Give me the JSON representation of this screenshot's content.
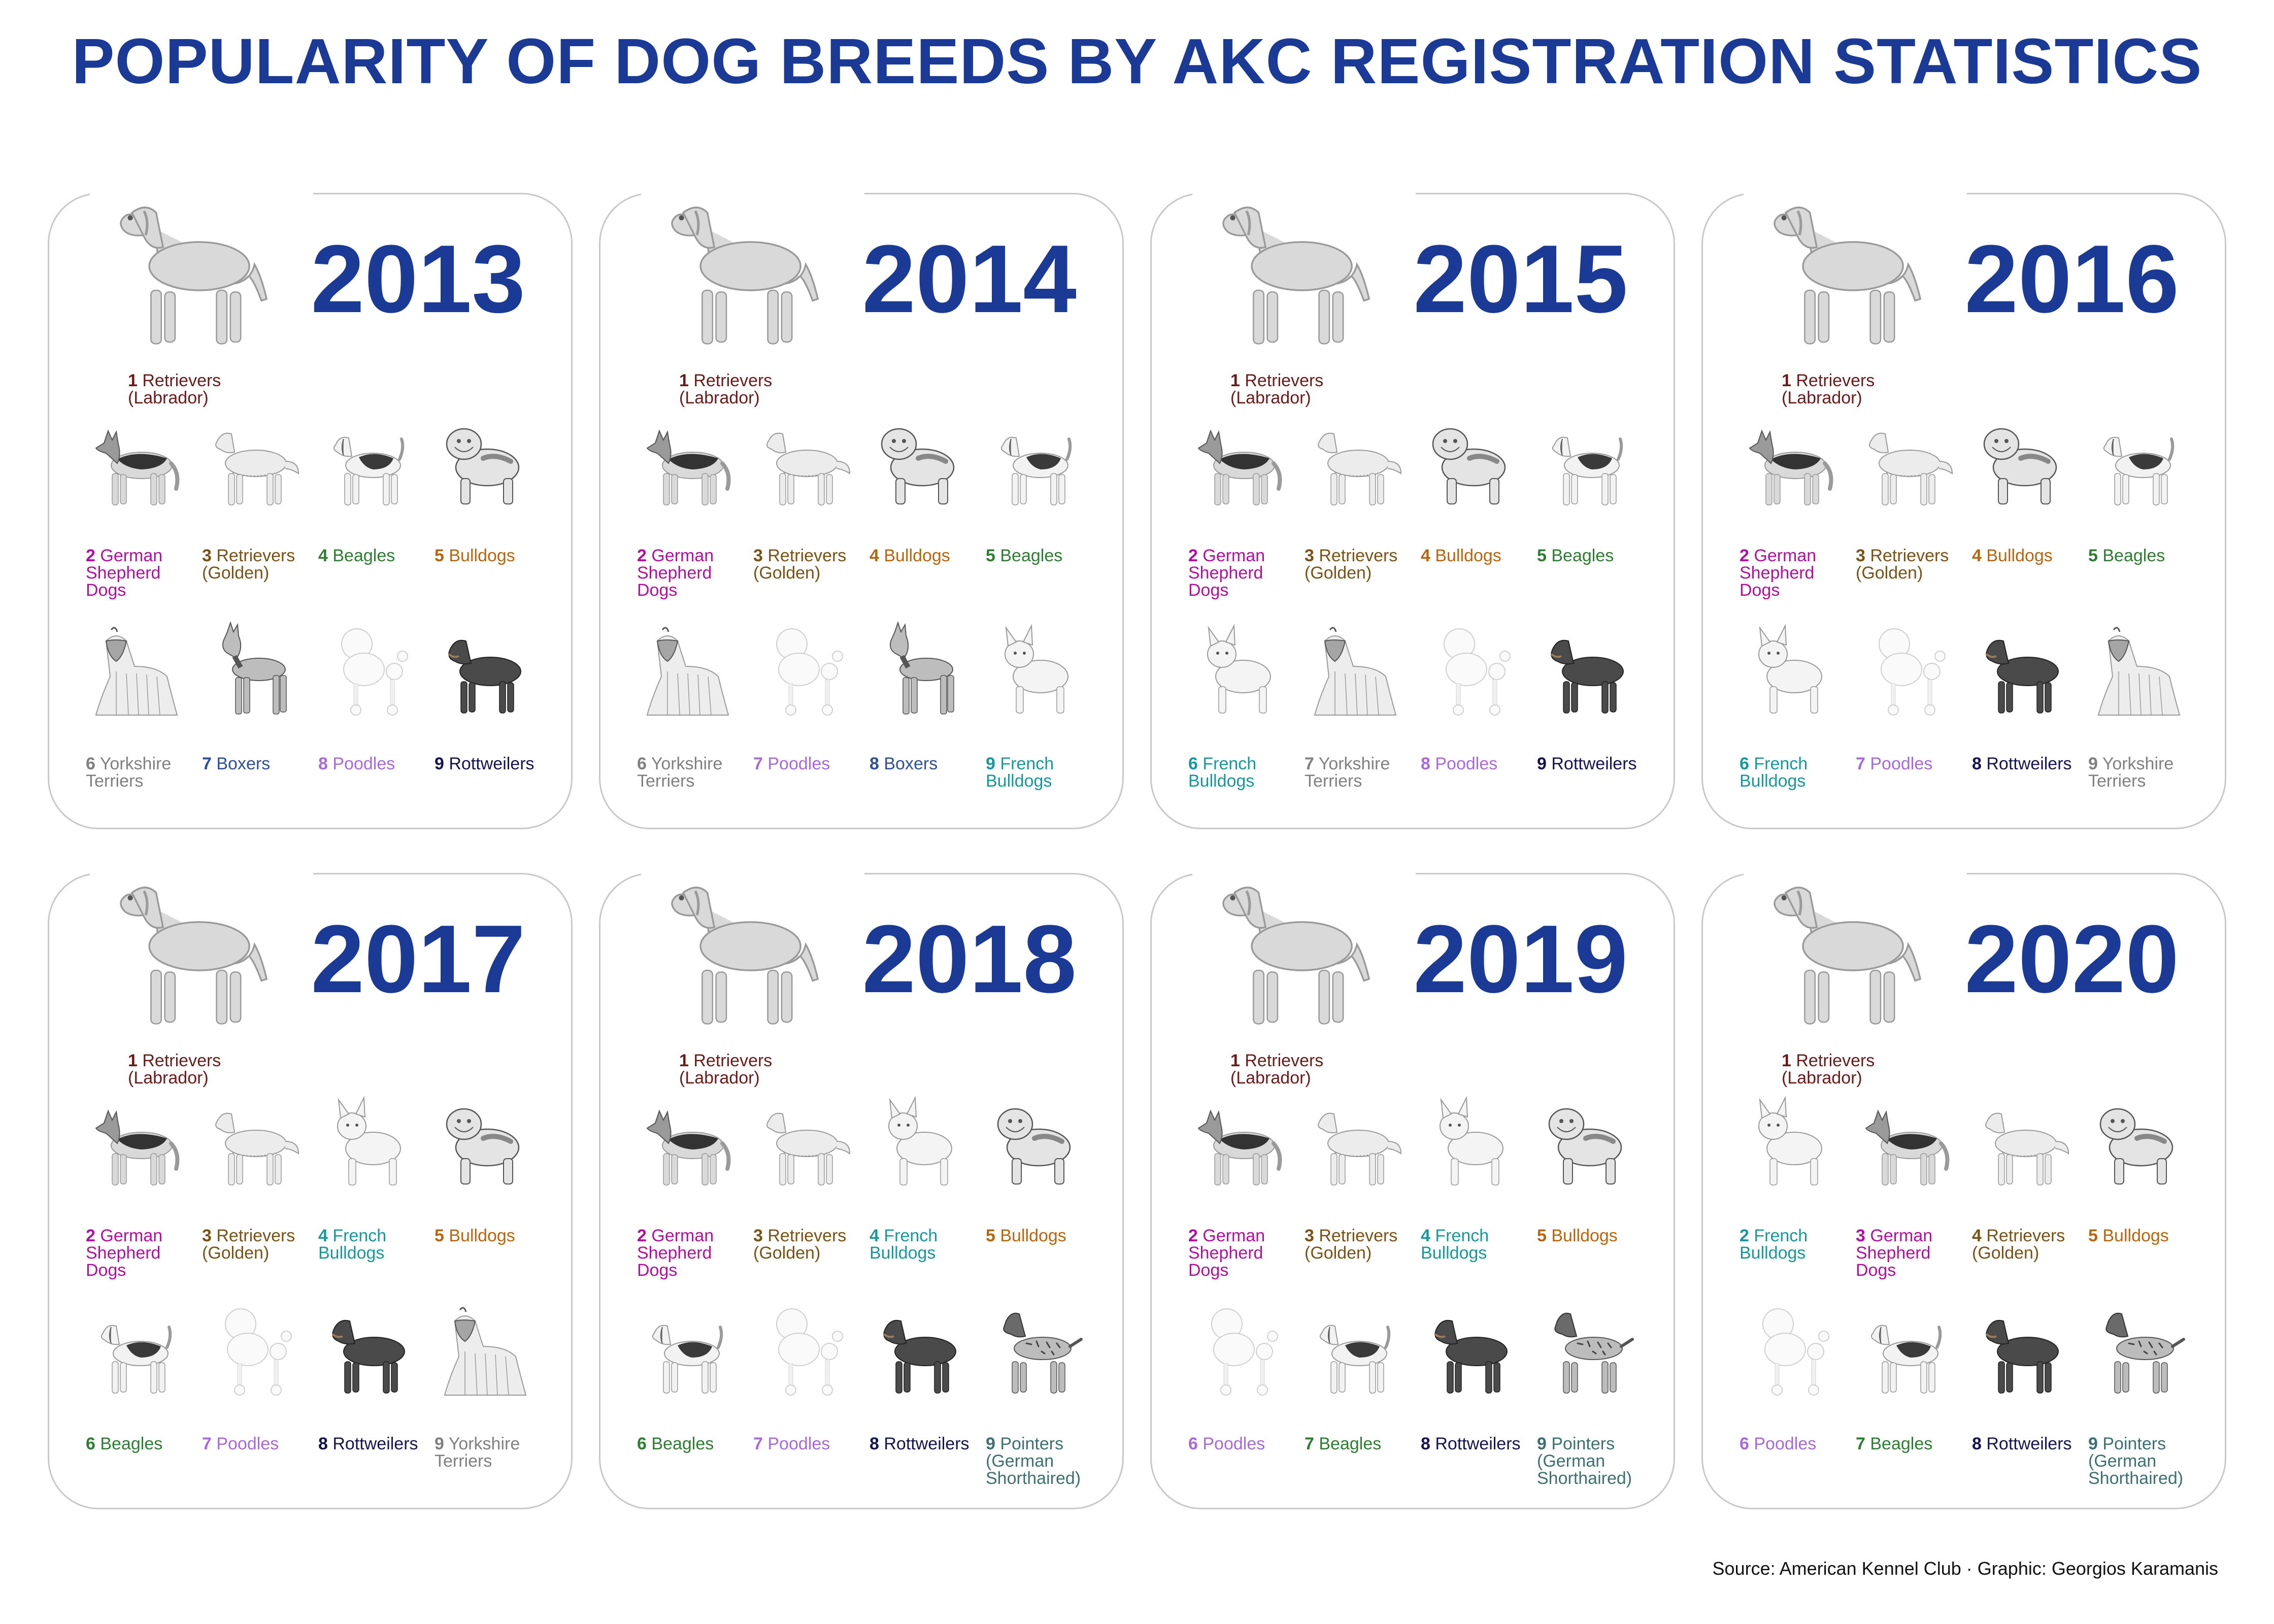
{
  "title": "POPULARITY OF DOG BREEDS BY AKC REGISTRATION STATISTICS",
  "source": "Source: American Kennel Club · Graphic: Georgios Karamanis",
  "chart_data": {
    "type": "table",
    "years": [
      {
        "year": "2013",
        "breeds": [
          {
            "rank": "1",
            "name": "Retrievers (Labrador)",
            "key": "labrador"
          },
          {
            "rank": "2",
            "name": "German Shepherd Dogs",
            "key": "gsd"
          },
          {
            "rank": "3",
            "name": "Retrievers (Golden)",
            "key": "golden"
          },
          {
            "rank": "4",
            "name": "Beagles",
            "key": "beagle"
          },
          {
            "rank": "5",
            "name": "Bulldogs",
            "key": "bulldog"
          },
          {
            "rank": "6",
            "name": "Yorkshire Terriers",
            "key": "yorkie"
          },
          {
            "rank": "7",
            "name": "Boxers",
            "key": "boxer"
          },
          {
            "rank": "8",
            "name": "Poodles",
            "key": "poodle"
          },
          {
            "rank": "9",
            "name": "Rottweilers",
            "key": "rottweiler"
          }
        ]
      },
      {
        "year": "2014",
        "breeds": [
          {
            "rank": "1",
            "name": "Retrievers (Labrador)",
            "key": "labrador"
          },
          {
            "rank": "2",
            "name": "German Shepherd Dogs",
            "key": "gsd"
          },
          {
            "rank": "3",
            "name": "Retrievers (Golden)",
            "key": "golden"
          },
          {
            "rank": "4",
            "name": "Bulldogs",
            "key": "bulldog"
          },
          {
            "rank": "5",
            "name": "Beagles",
            "key": "beagle"
          },
          {
            "rank": "6",
            "name": "Yorkshire Terriers",
            "key": "yorkie"
          },
          {
            "rank": "7",
            "name": "Poodles",
            "key": "poodle"
          },
          {
            "rank": "8",
            "name": "Boxers",
            "key": "boxer"
          },
          {
            "rank": "9",
            "name": "French Bulldogs",
            "key": "frenchie"
          }
        ]
      },
      {
        "year": "2015",
        "breeds": [
          {
            "rank": "1",
            "name": "Retrievers (Labrador)",
            "key": "labrador"
          },
          {
            "rank": "2",
            "name": "German Shepherd Dogs",
            "key": "gsd"
          },
          {
            "rank": "3",
            "name": "Retrievers (Golden)",
            "key": "golden"
          },
          {
            "rank": "4",
            "name": "Bulldogs",
            "key": "bulldog"
          },
          {
            "rank": "5",
            "name": "Beagles",
            "key": "beagle"
          },
          {
            "rank": "6",
            "name": "French Bulldogs",
            "key": "frenchie"
          },
          {
            "rank": "7",
            "name": "Yorkshire Terriers",
            "key": "yorkie"
          },
          {
            "rank": "8",
            "name": "Poodles",
            "key": "poodle"
          },
          {
            "rank": "9",
            "name": "Rottweilers",
            "key": "rottweiler"
          }
        ]
      },
      {
        "year": "2016",
        "breeds": [
          {
            "rank": "1",
            "name": "Retrievers (Labrador)",
            "key": "labrador"
          },
          {
            "rank": "2",
            "name": "German Shepherd Dogs",
            "key": "gsd"
          },
          {
            "rank": "3",
            "name": "Retrievers (Golden)",
            "key": "golden"
          },
          {
            "rank": "4",
            "name": "Bulldogs",
            "key": "bulldog"
          },
          {
            "rank": "5",
            "name": "Beagles",
            "key": "beagle"
          },
          {
            "rank": "6",
            "name": "French Bulldogs",
            "key": "frenchie"
          },
          {
            "rank": "7",
            "name": "Poodles",
            "key": "poodle"
          },
          {
            "rank": "8",
            "name": "Rottweilers",
            "key": "rottweiler"
          },
          {
            "rank": "9",
            "name": "Yorkshire Terriers",
            "key": "yorkie"
          }
        ]
      },
      {
        "year": "2017",
        "breeds": [
          {
            "rank": "1",
            "name": "Retrievers (Labrador)",
            "key": "labrador"
          },
          {
            "rank": "2",
            "name": "German Shepherd Dogs",
            "key": "gsd"
          },
          {
            "rank": "3",
            "name": "Retrievers (Golden)",
            "key": "golden"
          },
          {
            "rank": "4",
            "name": "French Bulldogs",
            "key": "frenchie"
          },
          {
            "rank": "5",
            "name": "Bulldogs",
            "key": "bulldog"
          },
          {
            "rank": "6",
            "name": "Beagles",
            "key": "beagle"
          },
          {
            "rank": "7",
            "name": "Poodles",
            "key": "poodle"
          },
          {
            "rank": "8",
            "name": "Rottweilers",
            "key": "rottweiler"
          },
          {
            "rank": "9",
            "name": "Yorkshire Terriers",
            "key": "yorkie"
          }
        ]
      },
      {
        "year": "2018",
        "breeds": [
          {
            "rank": "1",
            "name": "Retrievers (Labrador)",
            "key": "labrador"
          },
          {
            "rank": "2",
            "name": "German Shepherd Dogs",
            "key": "gsd"
          },
          {
            "rank": "3",
            "name": "Retrievers (Golden)",
            "key": "golden"
          },
          {
            "rank": "4",
            "name": "French Bulldogs",
            "key": "frenchie"
          },
          {
            "rank": "5",
            "name": "Bulldogs",
            "key": "bulldog"
          },
          {
            "rank": "6",
            "name": "Beagles",
            "key": "beagle"
          },
          {
            "rank": "7",
            "name": "Poodles",
            "key": "poodle"
          },
          {
            "rank": "8",
            "name": "Rottweilers",
            "key": "rottweiler"
          },
          {
            "rank": "9",
            "name": "Pointers (German Shorthaired)",
            "key": "pointer"
          }
        ]
      },
      {
        "year": "2019",
        "breeds": [
          {
            "rank": "1",
            "name": "Retrievers (Labrador)",
            "key": "labrador"
          },
          {
            "rank": "2",
            "name": "German Shepherd Dogs",
            "key": "gsd"
          },
          {
            "rank": "3",
            "name": "Retrievers (Golden)",
            "key": "golden"
          },
          {
            "rank": "4",
            "name": "French Bulldogs",
            "key": "frenchie"
          },
          {
            "rank": "5",
            "name": "Bulldogs",
            "key": "bulldog"
          },
          {
            "rank": "6",
            "name": "Poodles",
            "key": "poodle"
          },
          {
            "rank": "7",
            "name": "Beagles",
            "key": "beagle"
          },
          {
            "rank": "8",
            "name": "Rottweilers",
            "key": "rottweiler"
          },
          {
            "rank": "9",
            "name": "Pointers (German Shorthaired)",
            "key": "pointer"
          }
        ]
      },
      {
        "year": "2020",
        "breeds": [
          {
            "rank": "1",
            "name": "Retrievers (Labrador)",
            "key": "labrador"
          },
          {
            "rank": "2",
            "name": "French Bulldogs",
            "key": "frenchie"
          },
          {
            "rank": "3",
            "name": "German Shepherd Dogs",
            "key": "gsd"
          },
          {
            "rank": "4",
            "name": "Retrievers (Golden)",
            "key": "golden"
          },
          {
            "rank": "5",
            "name": "Bulldogs",
            "key": "bulldog"
          },
          {
            "rank": "6",
            "name": "Poodles",
            "key": "poodle"
          },
          {
            "rank": "7",
            "name": "Beagles",
            "key": "beagle"
          },
          {
            "rank": "8",
            "name": "Rottweilers",
            "key": "rottweiler"
          },
          {
            "rank": "9",
            "name": "Pointers (German Shorthaired)",
            "key": "pointer"
          }
        ]
      }
    ]
  },
  "breed_colors": {
    "labrador": "#6b1a1a",
    "gsd": "#b2109e",
    "golden": "#7a5214",
    "beagle": "#2e7d32",
    "bulldog": "#b8660d",
    "yorkie": "#808080",
    "boxer": "#2f4f96",
    "poodle": "#a86ad8",
    "rottweiler": "#141450",
    "frenchie": "#17989a",
    "pointer": "#3d7070"
  },
  "breed_icons": {
    "labrador": "labrador-illustration",
    "gsd": "german-shepherd-illustration",
    "golden": "golden-retriever-illustration",
    "beagle": "beagle-illustration",
    "bulldog": "bulldog-illustration",
    "yorkie": "yorkshire-terrier-illustration",
    "boxer": "boxer-illustration",
    "poodle": "poodle-illustration",
    "rottweiler": "rottweiler-illustration",
    "frenchie": "french-bulldog-illustration",
    "pointer": "pointer-illustration"
  },
  "year_color": "#1a3a96"
}
